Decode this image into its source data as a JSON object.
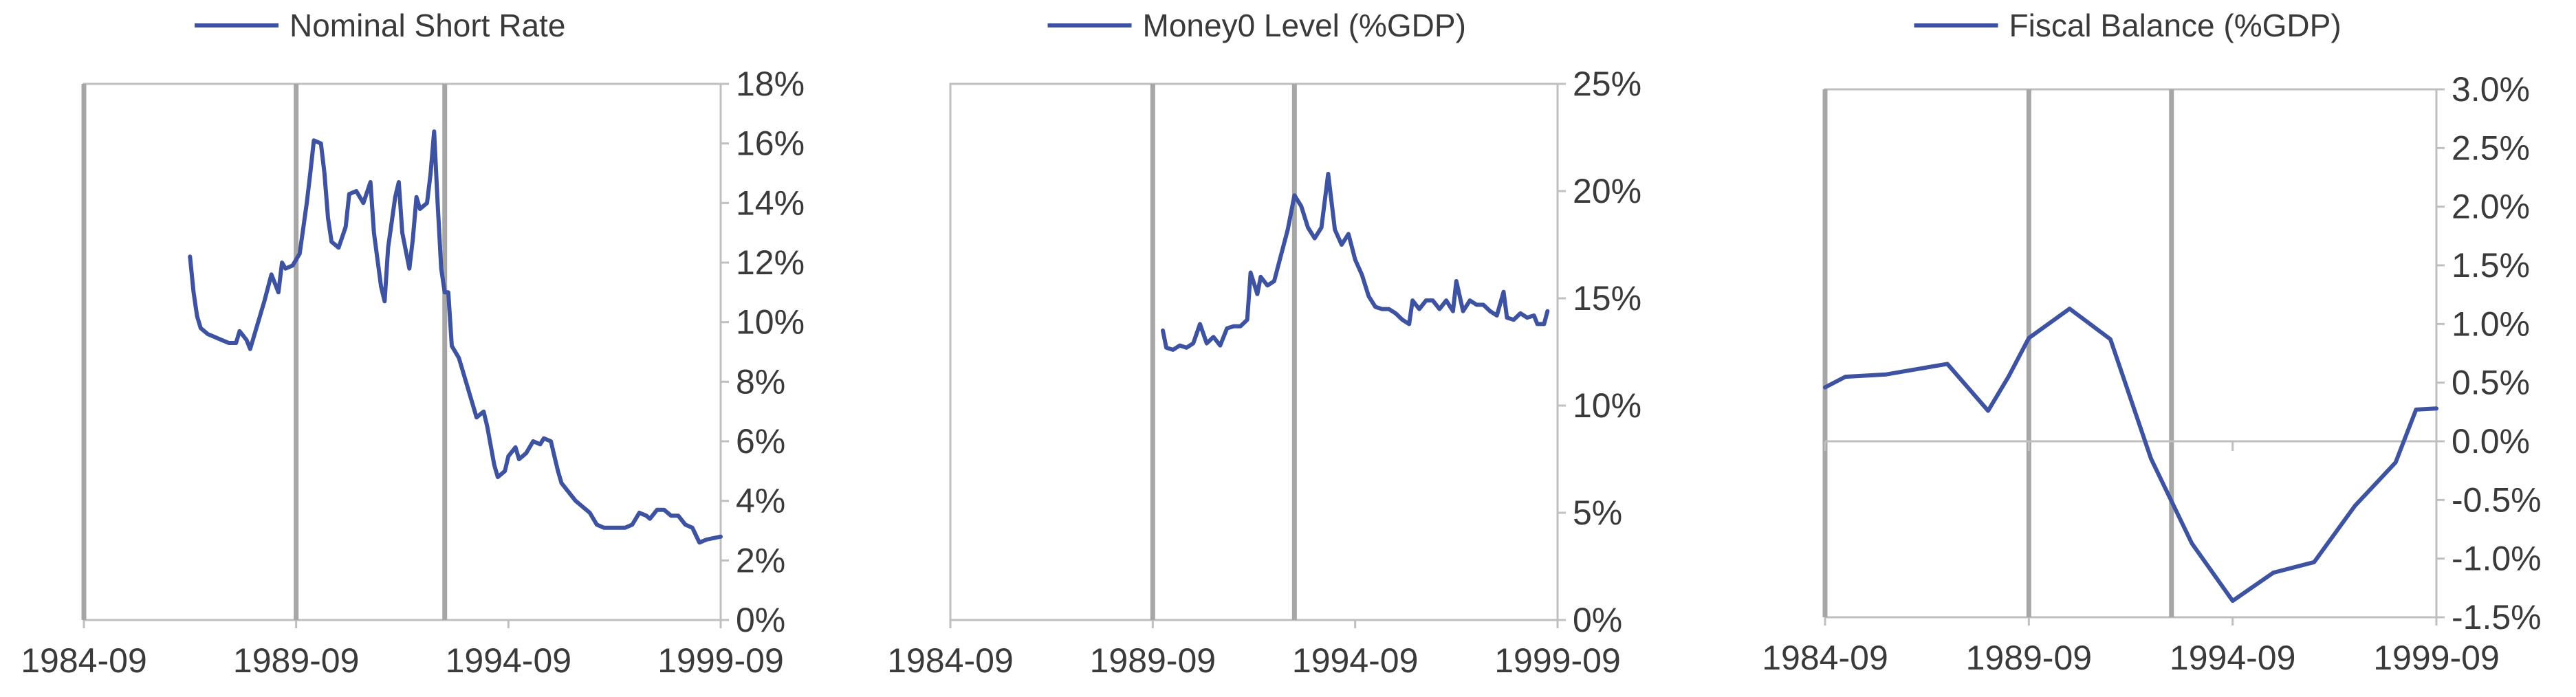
{
  "chart_data": [
    {
      "type": "line",
      "series": [
        {
          "name": "Nominal Short Rate",
          "points": [
            [
              "1987-03",
              12.2
            ],
            [
              "1987-04",
              11.0
            ],
            [
              "1987-05",
              10.2
            ],
            [
              "1987-06",
              9.8
            ],
            [
              "1987-08",
              9.6
            ],
            [
              "1987-10",
              9.5
            ],
            [
              "1987-12",
              9.4
            ],
            [
              "1988-02",
              9.3
            ],
            [
              "1988-04",
              9.3
            ],
            [
              "1988-05",
              9.7
            ],
            [
              "1988-07",
              9.4
            ],
            [
              "1988-08",
              9.1
            ],
            [
              "1988-10",
              9.9
            ],
            [
              "1988-12",
              10.7
            ],
            [
              "1989-02",
              11.6
            ],
            [
              "1989-04",
              11.0
            ],
            [
              "1989-05",
              12.0
            ],
            [
              "1989-06",
              11.8
            ],
            [
              "1989-08",
              11.9
            ],
            [
              "1989-10",
              12.3
            ],
            [
              "1989-12",
              14.0
            ],
            [
              "1990-01",
              15.0
            ],
            [
              "1990-02",
              16.1
            ],
            [
              "1990-04",
              16.0
            ],
            [
              "1990-05",
              15.0
            ],
            [
              "1990-06",
              13.5
            ],
            [
              "1990-07",
              12.7
            ],
            [
              "1990-09",
              12.5
            ],
            [
              "1990-11",
              13.2
            ],
            [
              "1990-12",
              14.3
            ],
            [
              "1991-02",
              14.4
            ],
            [
              "1991-03",
              14.2
            ],
            [
              "1991-04",
              14.0
            ],
            [
              "1991-06",
              14.7
            ],
            [
              "1991-07",
              13.0
            ],
            [
              "1991-09",
              11.2
            ],
            [
              "1991-10",
              10.7
            ],
            [
              "1991-11",
              12.5
            ],
            [
              "1992-01",
              14.2
            ],
            [
              "1992-02",
              14.7
            ],
            [
              "1992-03",
              13.0
            ],
            [
              "1992-05",
              11.8
            ],
            [
              "1992-06",
              12.8
            ],
            [
              "1992-07",
              14.2
            ],
            [
              "1992-08",
              13.8
            ],
            [
              "1992-10",
              14.0
            ],
            [
              "1992-11",
              15.0
            ],
            [
              "1992-12",
              16.4
            ],
            [
              "1993-01",
              14.0
            ],
            [
              "1993-02",
              11.8
            ],
            [
              "1993-03",
              11.0
            ],
            [
              "1993-04",
              11.0
            ],
            [
              "1993-05",
              9.2
            ],
            [
              "1993-07",
              8.8
            ],
            [
              "1993-09",
              8.0
            ],
            [
              "1993-11",
              7.2
            ],
            [
              "1993-12",
              6.8
            ],
            [
              "1994-02",
              7.0
            ],
            [
              "1994-03",
              6.5
            ],
            [
              "1994-05",
              5.2
            ],
            [
              "1994-06",
              4.8
            ],
            [
              "1994-08",
              5.0
            ],
            [
              "1994-09",
              5.5
            ],
            [
              "1994-11",
              5.8
            ],
            [
              "1994-12",
              5.4
            ],
            [
              "1995-02",
              5.6
            ],
            [
              "1995-04",
              6.0
            ],
            [
              "1995-06",
              5.9
            ],
            [
              "1995-07",
              6.1
            ],
            [
              "1995-09",
              6.0
            ],
            [
              "1995-10",
              5.5
            ],
            [
              "1995-11",
              5.0
            ],
            [
              "1995-12",
              4.6
            ],
            [
              "1996-02",
              4.3
            ],
            [
              "1996-04",
              4.0
            ],
            [
              "1996-06",
              3.8
            ],
            [
              "1996-08",
              3.6
            ],
            [
              "1996-10",
              3.2
            ],
            [
              "1996-12",
              3.1
            ],
            [
              "1997-02",
              3.1
            ],
            [
              "1997-04",
              3.1
            ],
            [
              "1997-06",
              3.1
            ],
            [
              "1997-08",
              3.2
            ],
            [
              "1997-10",
              3.6
            ],
            [
              "1997-12",
              3.5
            ],
            [
              "1998-01",
              3.4
            ],
            [
              "1998-03",
              3.7
            ],
            [
              "1998-05",
              3.7
            ],
            [
              "1998-07",
              3.5
            ],
            [
              "1998-09",
              3.5
            ],
            [
              "1998-11",
              3.2
            ],
            [
              "1999-01",
              3.1
            ],
            [
              "1999-03",
              2.6
            ],
            [
              "1999-05",
              2.7
            ],
            [
              "1999-09",
              2.8
            ]
          ]
        }
      ],
      "xlim": [
        "1984-09",
        "1999-09"
      ],
      "x_ticks": [
        "1984-09",
        "1989-09",
        "1994-09",
        "1999-09"
      ],
      "ylim": [
        0,
        18
      ],
      "y_ticks": [
        "0%",
        "2%",
        "4%",
        "6%",
        "8%",
        "10%",
        "12%",
        "14%",
        "16%",
        "18%"
      ],
      "vertical_lines": [
        "1984-09",
        "1989-09",
        "1993-03"
      ],
      "grid": false,
      "legend_position": "top",
      "y_axis_side": "right"
    },
    {
      "type": "line",
      "series": [
        {
          "name": "Money0 Level (%GDP)",
          "points": [
            [
              "1989-12",
              13.5
            ],
            [
              "1990-01",
              12.7
            ],
            [
              "1990-03",
              12.6
            ],
            [
              "1990-05",
              12.8
            ],
            [
              "1990-07",
              12.7
            ],
            [
              "1990-09",
              12.9
            ],
            [
              "1990-11",
              13.8
            ],
            [
              "1991-01",
              12.9
            ],
            [
              "1991-03",
              13.2
            ],
            [
              "1991-05",
              12.8
            ],
            [
              "1991-07",
              13.6
            ],
            [
              "1991-09",
              13.7
            ],
            [
              "1991-11",
              13.7
            ],
            [
              "1992-01",
              14.0
            ],
            [
              "1992-02",
              16.2
            ],
            [
              "1992-04",
              15.2
            ],
            [
              "1992-05",
              16.0
            ],
            [
              "1992-07",
              15.6
            ],
            [
              "1992-09",
              15.8
            ],
            [
              "1992-11",
              17.0
            ],
            [
              "1993-01",
              18.2
            ],
            [
              "1993-03",
              19.8
            ],
            [
              "1993-05",
              19.3
            ],
            [
              "1993-07",
              18.3
            ],
            [
              "1993-09",
              17.8
            ],
            [
              "1993-11",
              18.3
            ],
            [
              "1994-01",
              20.8
            ],
            [
              "1994-03",
              18.2
            ],
            [
              "1994-05",
              17.5
            ],
            [
              "1994-07",
              18.0
            ],
            [
              "1994-09",
              16.8
            ],
            [
              "1994-11",
              16.1
            ],
            [
              "1995-01",
              15.1
            ],
            [
              "1995-03",
              14.6
            ],
            [
              "1995-05",
              14.5
            ],
            [
              "1995-07",
              14.5
            ],
            [
              "1995-09",
              14.3
            ],
            [
              "1995-11",
              14.0
            ],
            [
              "1996-01",
              13.8
            ],
            [
              "1996-02",
              14.9
            ],
            [
              "1996-04",
              14.5
            ],
            [
              "1996-06",
              14.9
            ],
            [
              "1996-08",
              14.9
            ],
            [
              "1996-10",
              14.5
            ],
            [
              "1996-12",
              14.9
            ],
            [
              "1997-02",
              14.4
            ],
            [
              "1997-03",
              15.8
            ],
            [
              "1997-05",
              14.4
            ],
            [
              "1997-07",
              14.9
            ],
            [
              "1997-09",
              14.7
            ],
            [
              "1997-11",
              14.7
            ],
            [
              "1998-01",
              14.4
            ],
            [
              "1998-03",
              14.2
            ],
            [
              "1998-05",
              15.3
            ],
            [
              "1998-06",
              14.1
            ],
            [
              "1998-08",
              14.0
            ],
            [
              "1998-10",
              14.3
            ],
            [
              "1998-12",
              14.1
            ],
            [
              "1999-02",
              14.2
            ],
            [
              "1999-03",
              13.8
            ],
            [
              "1999-05",
              13.8
            ],
            [
              "1999-06",
              14.4
            ]
          ]
        }
      ],
      "xlim": [
        "1984-09",
        "1999-09"
      ],
      "x_ticks": [
        "1984-09",
        "1989-09",
        "1994-09",
        "1999-09"
      ],
      "ylim": [
        0,
        25
      ],
      "y_ticks": [
        "0%",
        "5%",
        "10%",
        "15%",
        "20%",
        "25%"
      ],
      "vertical_lines": [
        "1989-09",
        "1993-03"
      ],
      "grid": false,
      "legend_position": "top",
      "y_axis_side": "right"
    },
    {
      "type": "line",
      "series": [
        {
          "name": "Fiscal Balance (%GDP)",
          "points": [
            [
              "1984-09",
              0.46
            ],
            [
              "1985-03",
              0.55
            ],
            [
              "1986-03",
              0.57
            ],
            [
              "1987-03",
              0.63
            ],
            [
              "1987-09",
              0.66
            ],
            [
              "1988-09",
              0.26
            ],
            [
              "1989-03",
              0.55
            ],
            [
              "1989-09",
              0.88
            ],
            [
              "1990-09",
              1.13
            ],
            [
              "1991-09",
              0.87
            ],
            [
              "1992-09",
              -0.15
            ],
            [
              "1993-09",
              -0.87
            ],
            [
              "1994-09",
              -1.36
            ],
            [
              "1995-09",
              -1.12
            ],
            [
              "1996-09",
              -1.03
            ],
            [
              "1997-09",
              -0.55
            ],
            [
              "1998-09",
              -0.18
            ],
            [
              "1999-03",
              0.27
            ],
            [
              "1999-09",
              0.28
            ]
          ]
        }
      ],
      "xlim": [
        "1984-09",
        "1999-09"
      ],
      "x_ticks": [
        "1984-09",
        "1989-09",
        "1994-09",
        "1999-09"
      ],
      "ylim": [
        -1.5,
        3.0
      ],
      "y_ticks": [
        "-1.5%",
        "-1.0%",
        "-0.5%",
        "0.0%",
        "0.5%",
        "1.0%",
        "1.5%",
        "2.0%",
        "2.5%",
        "3.0%"
      ],
      "vertical_lines": [
        "1984-09",
        "1989-09",
        "1993-03"
      ],
      "grid": false,
      "legend_position": "top",
      "y_axis_side": "right"
    }
  ]
}
